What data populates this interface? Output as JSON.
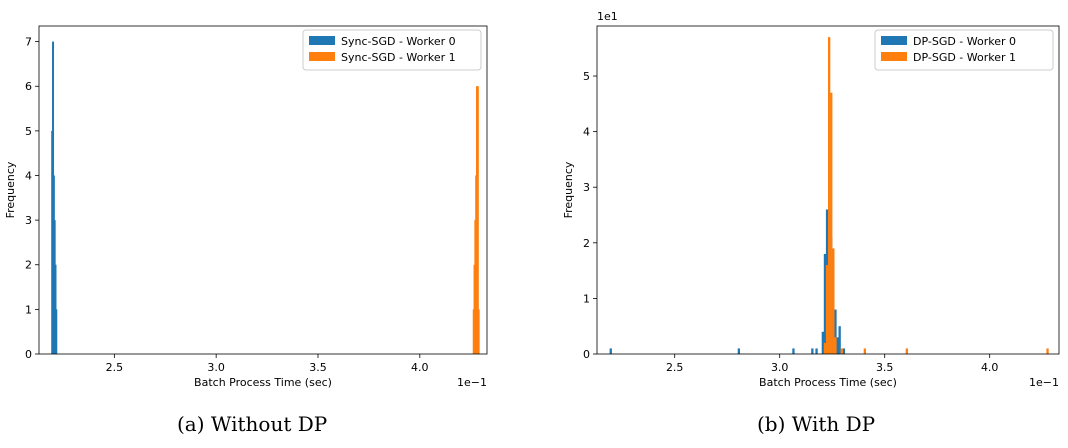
{
  "chart_data": [
    {
      "type": "bar",
      "subtype": "histogram",
      "caption": "(a) Without DP",
      "xlabel": "Batch Process Time (sec)",
      "ylabel": "Frequency",
      "x_scale_label": "1e−1",
      "y_scale_label": "",
      "xlim": [
        2.13,
        4.33
      ],
      "ylim": [
        0,
        7.35
      ],
      "xticks": [
        "2.5",
        "3.0",
        "3.5",
        "4.0"
      ],
      "xtick_values": [
        2.5,
        3.0,
        3.5,
        4.0
      ],
      "yticks": [
        "0",
        "1",
        "2",
        "3",
        "4",
        "5",
        "6",
        "7"
      ],
      "ytick_values": [
        0,
        1,
        2,
        3,
        4,
        5,
        6,
        7
      ],
      "legend_position": "top-right",
      "grid": false,
      "series": [
        {
          "name": "Sync-SGD - Worker 0",
          "color": "#1f77b4",
          "bin_width": 0.004,
          "bins": [
            [
              2.19,
              5
            ],
            [
              2.194,
              7
            ],
            [
              2.198,
              4
            ],
            [
              2.202,
              3
            ],
            [
              2.206,
              2
            ],
            [
              2.21,
              1
            ]
          ]
        },
        {
          "name": "Sync-SGD - Worker 1",
          "color": "#ff7f0e",
          "bin_width": 0.004,
          "bins": [
            [
              4.26,
              1
            ],
            [
              4.264,
              2
            ],
            [
              4.268,
              3
            ],
            [
              4.272,
              4
            ],
            [
              4.276,
              6
            ],
            [
              4.28,
              6
            ],
            [
              4.284,
              1
            ]
          ]
        }
      ]
    },
    {
      "type": "bar",
      "subtype": "histogram",
      "caption": "(b) With DP",
      "xlabel": "Batch Process Time (sec)",
      "ylabel": "Frequency",
      "x_scale_label": "1e−1",
      "y_scale_label": "1e1",
      "xlim": [
        2.13,
        4.33
      ],
      "ylim": [
        0,
        5.9
      ],
      "xticks": [
        "2.5",
        "3.0",
        "3.5",
        "4.0"
      ],
      "xtick_values": [
        2.5,
        3.0,
        3.5,
        4.0
      ],
      "yticks": [
        "0",
        "1",
        "2",
        "3",
        "4",
        "5"
      ],
      "ytick_values": [
        0,
        1,
        2,
        3,
        4,
        5
      ],
      "legend_position": "top-right",
      "grid": false,
      "series": [
        {
          "name": "DP-SGD - Worker 0",
          "color": "#1f77b4",
          "bin_width": 0.011,
          "bins": [
            [
              2.19,
              0.1
            ],
            [
              2.8,
              0.1
            ],
            [
              3.06,
              0.1
            ],
            [
              3.15,
              0.1
            ],
            [
              3.17,
              0.1
            ],
            [
              3.2,
              0.4
            ],
            [
              3.21,
              1.8
            ],
            [
              3.22,
              2.6
            ],
            [
              3.23,
              2.5
            ],
            [
              3.24,
              2.1
            ],
            [
              3.25,
              1.7
            ],
            [
              3.26,
              0.8
            ],
            [
              3.27,
              0.3
            ],
            [
              3.28,
              0.5
            ],
            [
              3.3,
              0.1
            ]
          ]
        },
        {
          "name": "DP-SGD - Worker 1",
          "color": "#ff7f0e",
          "bin_width": 0.011,
          "bins": [
            [
              3.21,
              0.2
            ],
            [
              3.22,
              1.6
            ],
            [
              3.23,
              5.7
            ],
            [
              3.24,
              4.7
            ],
            [
              3.25,
              1.9
            ],
            [
              3.26,
              0.3
            ],
            [
              3.29,
              0.1
            ],
            [
              3.4,
              0.1
            ],
            [
              3.6,
              0.1
            ],
            [
              4.27,
              0.1
            ]
          ]
        }
      ]
    }
  ]
}
